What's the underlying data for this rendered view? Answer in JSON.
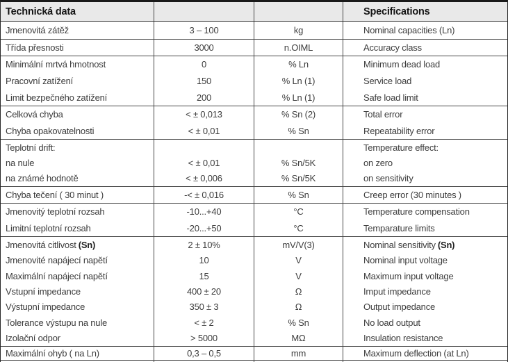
{
  "header": {
    "title_cs": "Technická data",
    "title_en": "Specifications"
  },
  "groups": [
    {
      "rows": [
        {
          "cs": "Jmenovitá zátěž",
          "value": "3 – 100",
          "unit": "kg",
          "en": "Nominal capacities (Ln)"
        }
      ]
    },
    {
      "rows": [
        {
          "cs": "Třída přesnosti",
          "value": "3000",
          "unit": "n.OIML",
          "en": "Accuracy class"
        }
      ]
    },
    {
      "rows": [
        {
          "cs": "Minimální mrtvá hmotnost",
          "value": "0",
          "unit": "% Ln",
          "en": "Minimum dead load"
        },
        {
          "cs": "Pracovní zatížení",
          "value": "150",
          "unit": "% Ln (1)",
          "en": "Service load"
        },
        {
          "cs": "Limit bezpečného zatížení",
          "value": "200",
          "unit": "% Ln (1)",
          "en": "Safe load limit"
        }
      ]
    },
    {
      "rows": [
        {
          "cs": "Celková chyba",
          "value": "< ± 0,013",
          "unit": "% Sn (2)",
          "en": "Total error"
        },
        {
          "cs": "Chyba opakovatelnosti",
          "value": "< ± 0,01",
          "unit": "% Sn",
          "en": "Repeatability error"
        }
      ]
    },
    {
      "rows": [
        {
          "cs": "Teplotní drift:",
          "value": "",
          "unit": "",
          "en": "Temperature effect:"
        },
        {
          "cs": "na nule",
          "value": "< ± 0,01",
          "unit": "% Sn/5K",
          "en": "on zero"
        },
        {
          "cs": "na známé hodnotě",
          "value": "< ± 0,006",
          "unit": "% Sn/5K",
          "en": "on sensitivity"
        }
      ]
    },
    {
      "rows": [
        {
          "cs": "Chyba tečení ( 30 minut )",
          "value": "-< ± 0,016",
          "unit": "% Sn",
          "en": "Creep error (30 minutes )"
        }
      ]
    },
    {
      "rows": [
        {
          "cs": "Jmenovitý teplotní rozsah",
          "value": "-10...+40",
          "unit": "°C",
          "en": "Temperature compensation"
        },
        {
          "cs": "Limitní teplotní rozsah",
          "value": "-20...+50",
          "unit": "°C",
          "en": "Temparature limits"
        }
      ]
    },
    {
      "rows": [
        {
          "cs": "Jmenovitá citlivost",
          "cs_b": "(Sn)",
          "value": "2 ± 10%",
          "unit": "mV/V(3)",
          "en": "Nominal sensitivity",
          "en_b": "(Sn)"
        },
        {
          "cs": "Jmenovité napájecí napětí",
          "value": "10",
          "unit": "V",
          "en": "Nominal input voltage"
        },
        {
          "cs": "Maximální napájecí napětí",
          "value": "15",
          "unit": "V",
          "en": "Maximum input voltage"
        },
        {
          "cs": "Vstupní impedance",
          "value": "400 ± 20",
          "unit": "Ω",
          "en": "Imput impedance"
        },
        {
          "cs": "Výstupní impedance",
          "value": "350 ± 3",
          "unit": "Ω",
          "en": "Output impedance"
        },
        {
          "cs": "Tolerance výstupu na nule",
          "value": "< ± 2",
          "unit": "% Sn",
          "en": "No load output"
        },
        {
          "cs": "Izolační odpor",
          "value": "> 5000",
          "unit": "MΩ",
          "en": "Insulation resistance"
        }
      ]
    },
    {
      "rows": [
        {
          "cs": "Maximální ohyb ( na Ln)",
          "value": "0,3 – 0,5",
          "unit": "mm",
          "en": "Maximum deflection (at Ln)"
        }
      ]
    }
  ]
}
